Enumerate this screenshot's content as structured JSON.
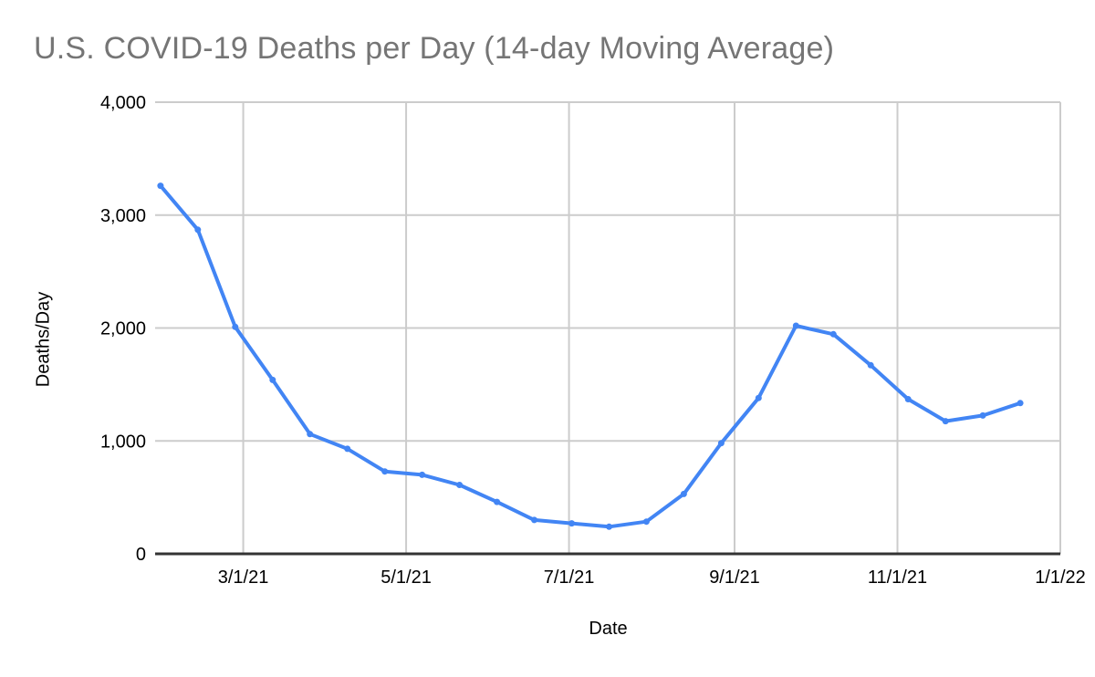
{
  "title": "U.S. COVID-19 Deaths per Day (14-day Moving Average)",
  "colors": {
    "line": "#4285f4",
    "marker": "#4285f4",
    "title_text": "#757575",
    "tick_text": "#000000",
    "gridline": "#cccccc",
    "axis_line": "#333333",
    "background": "#ffffff"
  },
  "chart_data": {
    "type": "line",
    "title": "U.S. COVID-19 Deaths per Day (14-day Moving Average)",
    "xlabel": "Date",
    "ylabel": "Deaths/Day",
    "ylim": [
      0,
      4000
    ],
    "grid": true,
    "legend": false,
    "marker": "point",
    "x_domain": [
      "2021-01-27",
      "2022-01-01"
    ],
    "x": [
      "2021-01-29",
      "2021-02-12",
      "2021-02-26",
      "2021-03-12",
      "2021-03-26",
      "2021-04-09",
      "2021-04-23",
      "2021-05-07",
      "2021-05-21",
      "2021-06-04",
      "2021-06-18",
      "2021-07-02",
      "2021-07-16",
      "2021-07-30",
      "2021-08-13",
      "2021-08-27",
      "2021-09-10",
      "2021-09-24",
      "2021-10-08",
      "2021-10-22",
      "2021-11-05",
      "2021-11-19",
      "2021-12-03",
      "2021-12-17"
    ],
    "values": [
      3260,
      2870,
      2010,
      1540,
      1060,
      930,
      730,
      700,
      610,
      460,
      300,
      270,
      240,
      285,
      530,
      980,
      1380,
      2020,
      1945,
      1670,
      1370,
      1175,
      1225,
      1335
    ],
    "y_ticks": [
      {
        "value": 0,
        "label": "0"
      },
      {
        "value": 1000,
        "label": "1,000"
      },
      {
        "value": 2000,
        "label": "2,000"
      },
      {
        "value": 3000,
        "label": "3,000"
      },
      {
        "value": 4000,
        "label": "4,000"
      }
    ],
    "x_ticks": [
      {
        "date": "2021-03-01",
        "label": "3/1/21"
      },
      {
        "date": "2021-05-01",
        "label": "5/1/21"
      },
      {
        "date": "2021-07-01",
        "label": "7/1/21"
      },
      {
        "date": "2021-09-01",
        "label": "9/1/21"
      },
      {
        "date": "2021-11-01",
        "label": "11/1/21"
      },
      {
        "date": "2022-01-01",
        "label": "1/1/22"
      }
    ]
  }
}
